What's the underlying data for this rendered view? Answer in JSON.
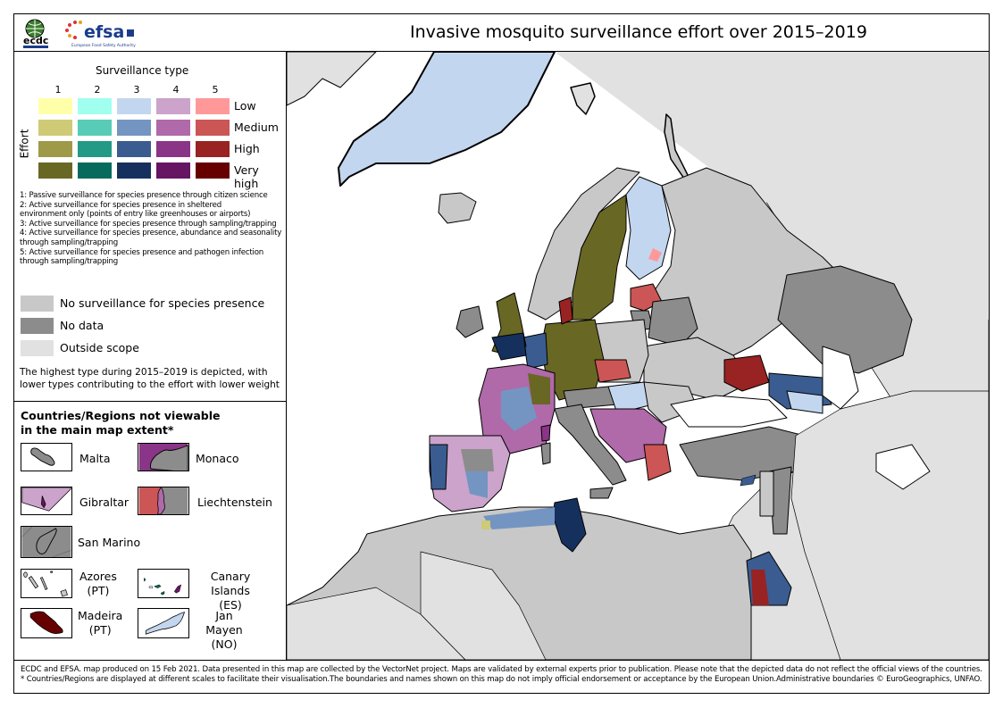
{
  "header": {
    "title": "Invasive mosquito surveillance effort over 2015–2019",
    "logos": [
      "ecdc-logo",
      "efsa-logo"
    ],
    "efsa_subtitle": "European Food Safety Authority"
  },
  "legend": {
    "surveillance_type_title": "Surveillance type",
    "effort_axis_label": "Effort",
    "types": [
      "1",
      "2",
      "3",
      "4",
      "5"
    ],
    "effort_levels": [
      "Low",
      "Medium",
      "High",
      "Very high"
    ],
    "colors": {
      "type1": [
        "#FFFFAA",
        "#CFCA76",
        "#9E9A48",
        "#696724"
      ],
      "type2": [
        "#A0FFEE",
        "#58CCB6",
        "#229A86",
        "#066B5C"
      ],
      "type3": [
        "#C3D6EF",
        "#7495C2",
        "#3A5C90",
        "#16305E"
      ],
      "type4": [
        "#CBA3CB",
        "#B069A9",
        "#8A3587",
        "#661563"
      ],
      "type5": [
        "#FF9999",
        "#CC5555",
        "#992222",
        "#660000"
      ]
    },
    "definitions": [
      "1: Passive surveillance for species presence through citizen science",
      "2: Active surveillance for species presence in sheltered",
      "environment only (points of entry like greenhouses or airports)",
      "3: Active surveillance for species presence through sampling/trapping",
      "4: Active surveillance for species presence, abundance and seasonality",
      "through sampling/trapping",
      "5: Active surveillance for species presence and pathogen infection",
      "through sampling/trapping"
    ],
    "other_categories": [
      {
        "label": "No surveillance for species presence",
        "color": "#C8C8C8"
      },
      {
        "label": "No data",
        "color": "#8C8C8C"
      },
      {
        "label": "Outside scope",
        "color": "#E1E1E1"
      }
    ],
    "note_line1": "The highest type during 2015–2019 is depicted, with",
    "note_line2": "lower types contributing to the effort with lower weight"
  },
  "insets": {
    "title_line1": "Countries/Regions not viewable",
    "title_line2": "in the main map extent*",
    "items": [
      {
        "name": "Malta",
        "line2": ""
      },
      {
        "name": "Monaco",
        "line2": ""
      },
      {
        "name": "Gibraltar",
        "line2": ""
      },
      {
        "name": "Liechtenstein",
        "line2": ""
      },
      {
        "name": "San Marino",
        "line2": ""
      },
      {
        "name": "Azores",
        "line2": "(PT)"
      },
      {
        "name": "Canary Islands",
        "line2": "(ES)"
      },
      {
        "name": "Madeira",
        "line2": "(PT)"
      },
      {
        "name": "Jan Mayen",
        "line2": "(NO)"
      }
    ]
  },
  "map": {
    "region": "Europe, North Africa and Middle East",
    "sea_color": "#FFFFFF",
    "highlighted_regions": [
      {
        "region": "Greenland",
        "category": "type3-low"
      },
      {
        "region": "Iceland",
        "category": "no-surveillance"
      },
      {
        "region": "Sweden",
        "category": "type1-very-high"
      },
      {
        "region": "Finland",
        "category": "type3-low"
      },
      {
        "region": "Germany",
        "category": "type1-very-high"
      },
      {
        "region": "Denmark",
        "category": "type5-high"
      },
      {
        "region": "Latvia",
        "category": "type5-medium"
      },
      {
        "region": "Belarus",
        "category": "no-data"
      },
      {
        "region": "Italy",
        "category": "no-data"
      },
      {
        "region": "Turkey",
        "category": "no-data"
      },
      {
        "region": "Tunisia",
        "category": "type3-very-high"
      },
      {
        "region": "France",
        "category": "type4-medium"
      },
      {
        "region": "Spain",
        "category": "type4-low"
      },
      {
        "region": "United Kingdom",
        "category": "type3-high"
      },
      {
        "region": "Russia (Crimea/Krasnodar)",
        "category": "type5-high"
      },
      {
        "region": "Egypt (Red Sea coast)",
        "category": "type3-high"
      }
    ]
  },
  "footer": {
    "line1": "ECDC and EFSA. map produced on 15 Feb 2021. Data presented in this map are collected by the VectorNet project. Maps are validated by external experts prior to publication. Please note that the depicted data do not reflect the official views of the countries.",
    "line2": "* Countries/Regions are displayed at different scales to facilitate their visualisation.The boundaries and names shown on this map do not imply official endorsement or acceptance by the European Union.Administrative boundaries © EuroGeographics, UNFAO."
  }
}
